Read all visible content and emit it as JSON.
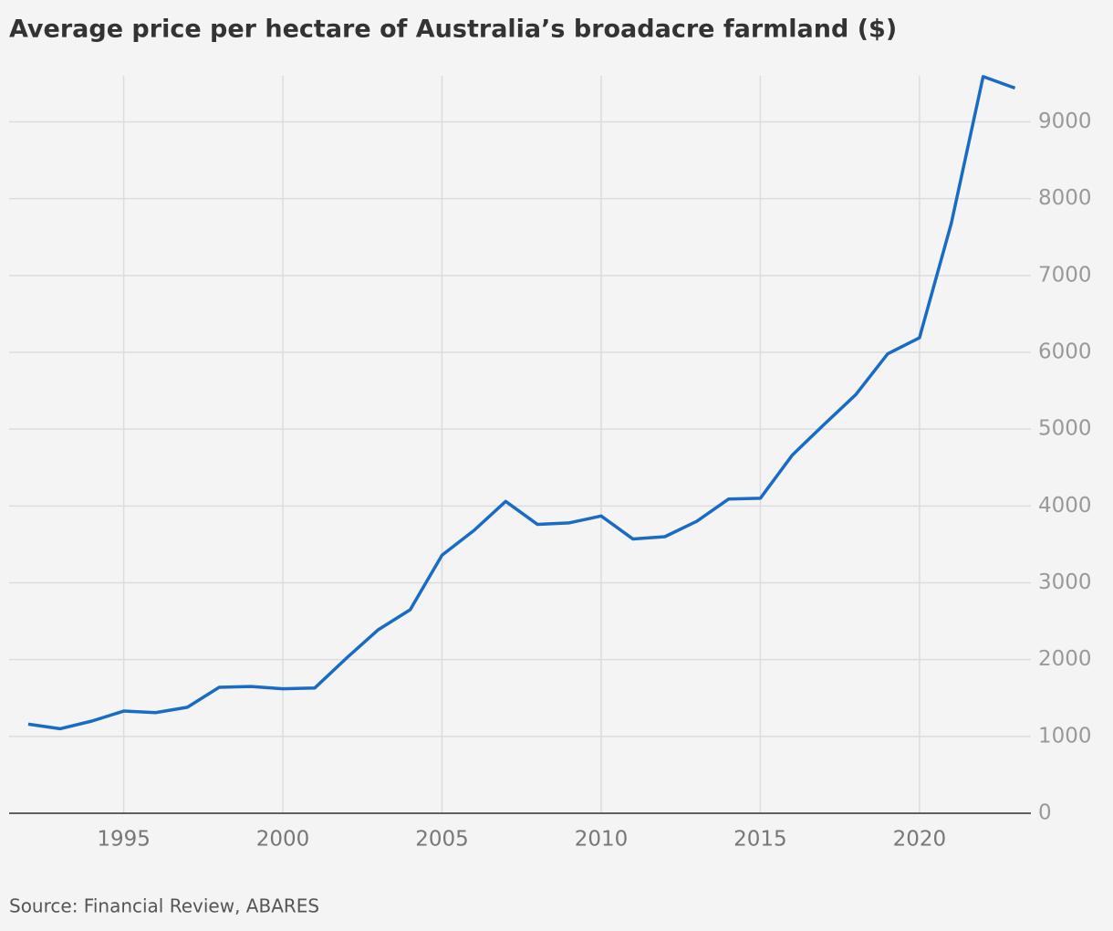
{
  "chart_data": {
    "type": "line",
    "title": "Average price per hectare of Australia’s broadacre farmland ($)",
    "source": "Source: Financial Review, ABARES",
    "x": [
      1992,
      1993,
      1994,
      1995,
      1996,
      1997,
      1998,
      1999,
      2000,
      2001,
      2002,
      2003,
      2004,
      2005,
      2006,
      2007,
      2008,
      2009,
      2010,
      2011,
      2012,
      2013,
      2014,
      2015,
      2016,
      2017,
      2018,
      2019,
      2020,
      2021,
      2022,
      2023
    ],
    "series": [
      {
        "name": "Average price per hectare",
        "color": "#1a6bc4",
        "values": [
          1160,
          1100,
          1200,
          1330,
          1310,
          1380,
          1640,
          1650,
          1620,
          1630,
          2020,
          2390,
          2650,
          3360,
          3680,
          4060,
          3760,
          3780,
          3870,
          3570,
          3600,
          3800,
          4090,
          4100,
          4660,
          5060,
          5450,
          5980,
          6190,
          7680,
          9590,
          9440
        ]
      }
    ],
    "xlim": [
      1991.4,
      2023.5
    ],
    "xticks": [
      1995,
      2000,
      2005,
      2010,
      2015,
      2020
    ],
    "ylim": [
      0,
      9600
    ],
    "yticks": [
      0,
      1000,
      2000,
      3000,
      4000,
      5000,
      6000,
      7000,
      8000,
      9000
    ],
    "grid": true
  }
}
